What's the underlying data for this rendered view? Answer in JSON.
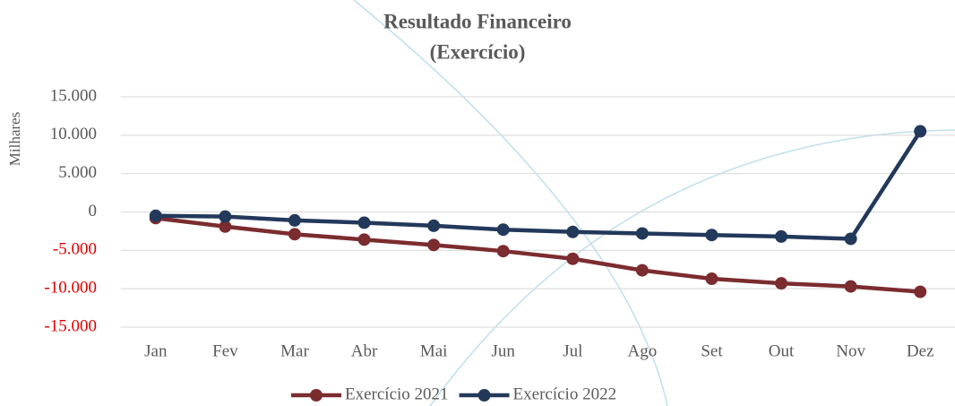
{
  "chart_data": {
    "type": "line",
    "title": [
      "Resultado Financeiro",
      "(Exercício)"
    ],
    "y_label": "Milhares",
    "categories": [
      "Jan",
      "Fev",
      "Mar",
      "Abr",
      "Mai",
      "Jun",
      "Jul",
      "Ago",
      "Set",
      "Out",
      "Nov",
      "Dez"
    ],
    "series": [
      {
        "name": "Exercício 2021",
        "color": "#7b2c2f",
        "values": [
          -800,
          -1900,
          -2900,
          -3600,
          -4300,
          -5100,
          -6100,
          -7600,
          -8700,
          -9300,
          -9700,
          -10400
        ]
      },
      {
        "name": "Exercício 2022",
        "color": "#23395b",
        "values": [
          -500,
          -600,
          -1100,
          -1400,
          -1800,
          -2300,
          -2600,
          -2800,
          -3000,
          -3200,
          -3500,
          10500
        ]
      }
    ],
    "ylim": [
      -15000,
      15000
    ],
    "yticks": [
      {
        "value": -15000,
        "label": "-15.000"
      },
      {
        "value": -10000,
        "label": "-10.000"
      },
      {
        "value": -5000,
        "label": "-5.000"
      },
      0,
      {
        "value": 5000,
        "label": "5.000"
      },
      {
        "value": 10000,
        "label": "10.000"
      },
      {
        "value": 15000,
        "label": "15.000"
      }
    ],
    "negative_tick_color": "#e00000",
    "grid": true,
    "legend": "bottom"
  }
}
